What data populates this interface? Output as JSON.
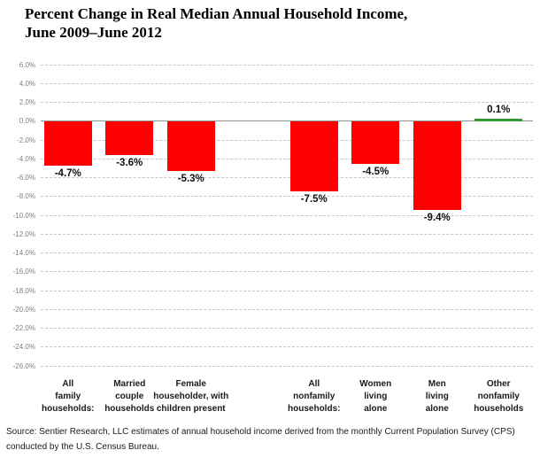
{
  "title_lines": [
    "Percent Change in Real Median Annual Household Income,",
    "June 2009–June 2012"
  ],
  "source_lines": [
    "Source: Sentier Research, LLC estimates of annual household income derived from the monthly Current Population Survey (CPS)",
    "conducted by the U.S. Census Bureau."
  ],
  "chart_data": {
    "type": "bar",
    "title": "Percent Change in Real Median Annual Household Income, June 2009–June 2012",
    "categories": [
      [
        "All",
        "family",
        "households:"
      ],
      [
        "Married",
        "couple",
        "households"
      ],
      [
        "Female",
        "householder, with",
        "children present"
      ],
      [
        "All",
        "nonfamily",
        "households:"
      ],
      [
        "Women",
        "living",
        "alone"
      ],
      [
        "Men",
        "living",
        "alone"
      ],
      [
        "Other",
        "nonfamily",
        "households"
      ]
    ],
    "values": [
      -4.7,
      -3.6,
      -5.3,
      -7.5,
      -4.5,
      -9.4,
      0.1
    ],
    "data_labels": [
      "-4.7%",
      "-3.6%",
      "-5.3%",
      "-7.5%",
      "-4.5%",
      "-9.4%",
      "0.1%"
    ],
    "slots": [
      0,
      1,
      2,
      4,
      5,
      6,
      7
    ],
    "slot_count": 8,
    "y_ticks": [
      "6.0%",
      "4.0%",
      "2.0%",
      "0.0%",
      "-2.0%",
      "-4.0%",
      "-6.0%",
      "-8.0%",
      "-10.0%",
      "-12.0%",
      "-14.0%",
      "-16.0%",
      "-18.0%",
      "-20.0%",
      "-22.0%",
      "-24.0%",
      "-26.0%"
    ],
    "ylim": [
      -26,
      6
    ],
    "grid": "dashed-horizontal",
    "legend": "none",
    "colors": {
      "negative_bar": "#ff0000",
      "positive_bar": "#339933",
      "gridline": "#c6c6c6",
      "zero_line": "#919191",
      "tick_label": "#7f7f7f",
      "data_label": "#111111",
      "category_label": "#1a1a1a",
      "title": "#000000"
    }
  }
}
